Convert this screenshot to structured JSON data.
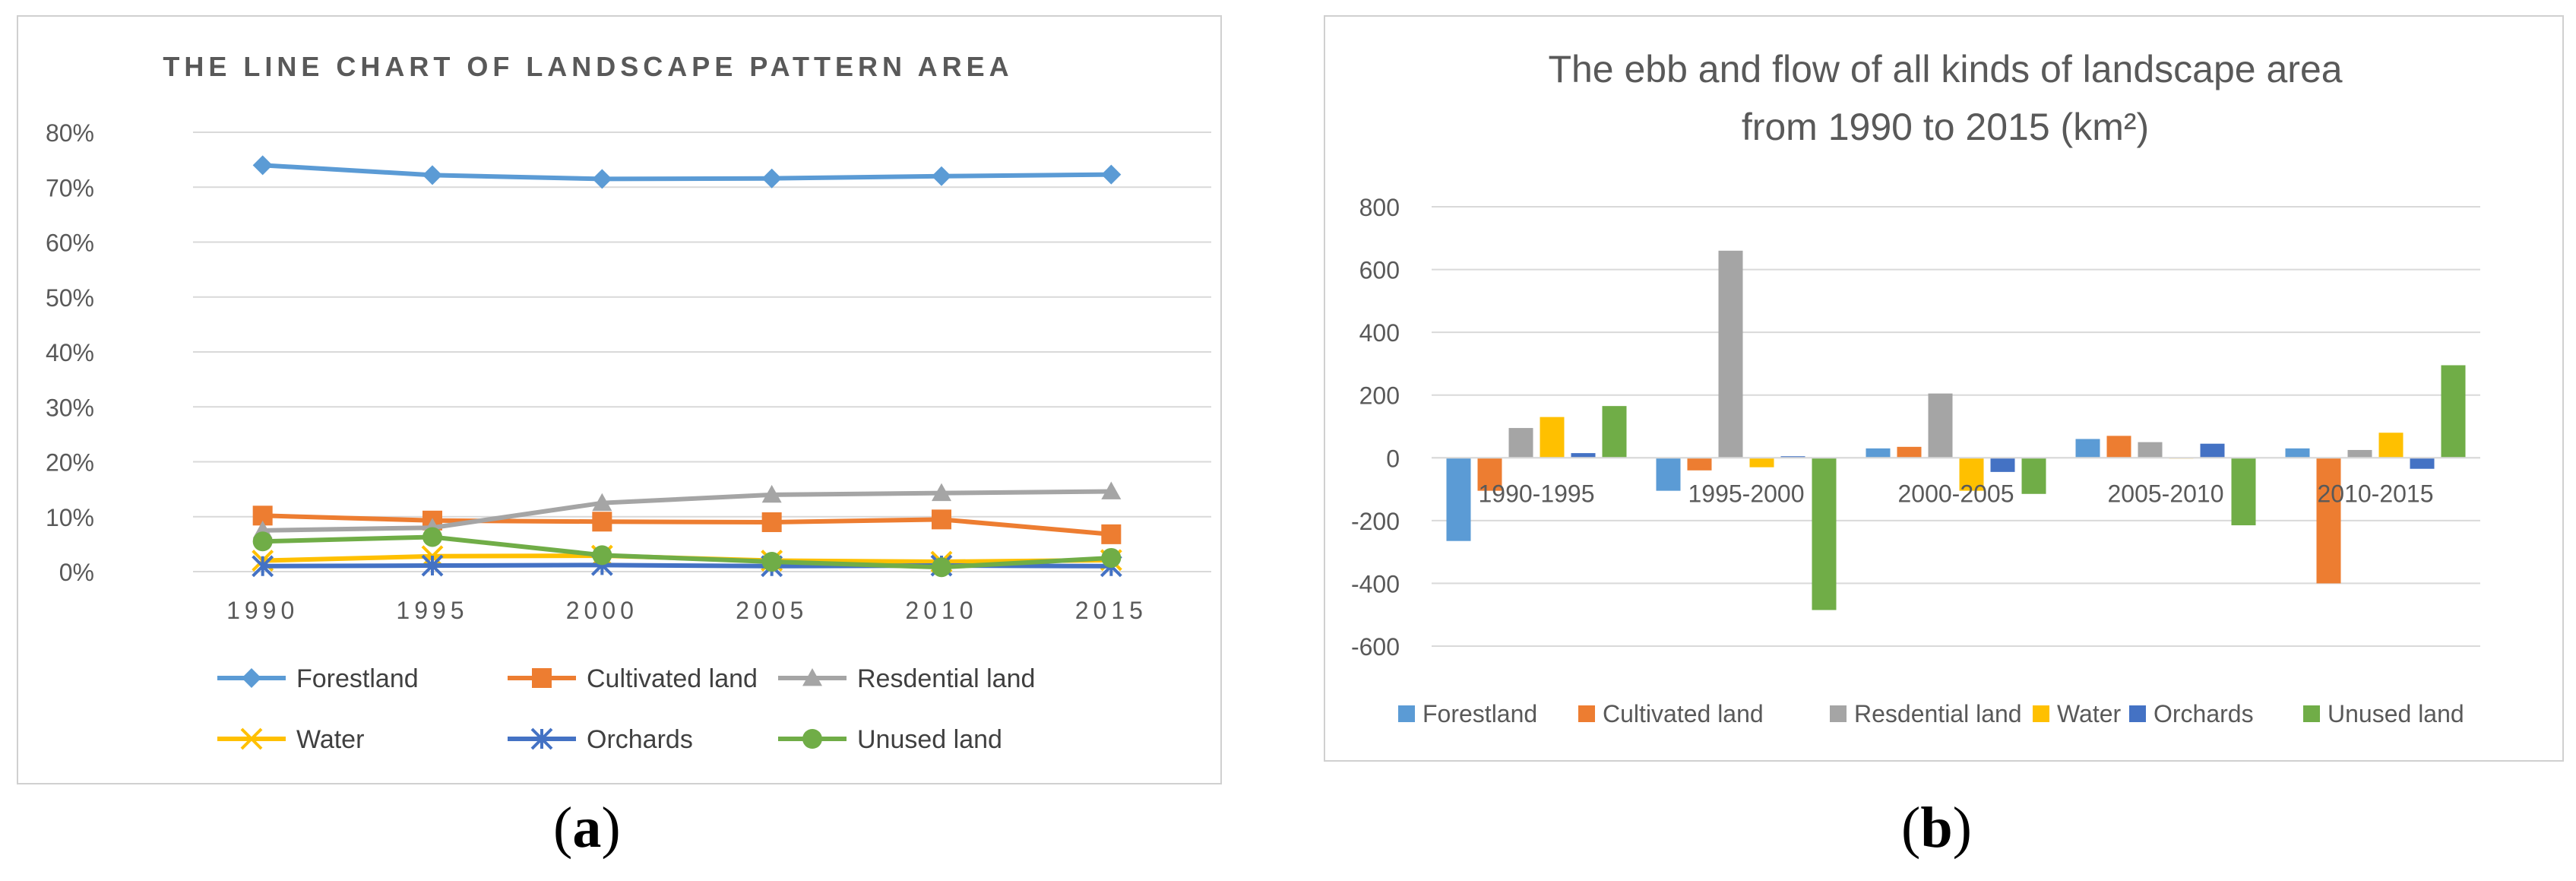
{
  "chart_data": [
    {
      "type": "line",
      "title": "THE LINE CHART OF LANDSCAPE PATTERN AREA",
      "xlabel": "",
      "ylabel": "",
      "categories": [
        "1990",
        "1995",
        "2000",
        "2005",
        "2010",
        "2015"
      ],
      "ylim": [
        0,
        80
      ],
      "yticks": [
        "0%",
        "10%",
        "20%",
        "30%",
        "40%",
        "50%",
        "60%",
        "70%",
        "80%"
      ],
      "grid": true,
      "legend": "bottom",
      "series": [
        {
          "name": "Forestland",
          "color": "#5b9bd5",
          "marker": "diamond",
          "values": [
            74,
            72.2,
            71.5,
            71.6,
            72,
            72.3
          ]
        },
        {
          "name": "Cultivated land",
          "color": "#ed7d31",
          "marker": "square",
          "values": [
            10.2,
            9.3,
            9.1,
            9.0,
            9.5,
            6.8
          ]
        },
        {
          "name": "Resdential land",
          "color": "#a5a5a5",
          "marker": "triangle",
          "values": [
            7.5,
            8.0,
            12.5,
            14.0,
            14.3,
            14.6
          ]
        },
        {
          "name": "Water",
          "color": "#ffc000",
          "marker": "x",
          "values": [
            2.0,
            2.8,
            2.9,
            2.0,
            1.8,
            2.1
          ]
        },
        {
          "name": "Orchards",
          "color": "#4472c4",
          "marker": "star",
          "values": [
            1.0,
            1.1,
            1.2,
            1.0,
            1.1,
            1.0
          ]
        },
        {
          "name": "Unused land",
          "color": "#70ad47",
          "marker": "circle",
          "values": [
            5.5,
            6.3,
            3.0,
            1.8,
            0.8,
            2.5
          ]
        }
      ]
    },
    {
      "type": "bar",
      "title": "The ebb and flow of all kinds of landscape area",
      "subtitle": "from 1990 to 2015 (km²)",
      "xlabel": "",
      "ylabel": "",
      "categories": [
        "1990-1995",
        "1995-2000",
        "2000-2005",
        "2005-2010",
        "2010-2015"
      ],
      "ylim": [
        -600,
        800
      ],
      "yticks": [
        "-600",
        "-400",
        "-200",
        "0",
        "200",
        "400",
        "600",
        "800"
      ],
      "grid": true,
      "legend": "bottom",
      "series": [
        {
          "name": "Forestland",
          "color": "#5b9bd5",
          "values": [
            -265,
            -105,
            30,
            60,
            30
          ]
        },
        {
          "name": "Cultivated land",
          "color": "#ed7d31",
          "values": [
            -105,
            -40,
            35,
            70,
            -400
          ]
        },
        {
          "name": "Resdential land",
          "color": "#a5a5a5",
          "values": [
            95,
            660,
            205,
            50,
            25
          ]
        },
        {
          "name": "Water",
          "color": "#ffc000",
          "values": [
            130,
            -30,
            -105,
            0,
            80
          ]
        },
        {
          "name": "Orchards",
          "color": "#4472c4",
          "values": [
            15,
            5,
            -45,
            45,
            -35
          ]
        },
        {
          "name": "Unused land",
          "color": "#70ad47",
          "values": [
            165,
            -485,
            -115,
            -215,
            295
          ]
        }
      ]
    }
  ],
  "labels": {
    "a": {
      "open": "(",
      "letter": "a",
      "close": ")"
    },
    "b": {
      "open": "(",
      "letter": "b",
      "close": ")"
    }
  }
}
